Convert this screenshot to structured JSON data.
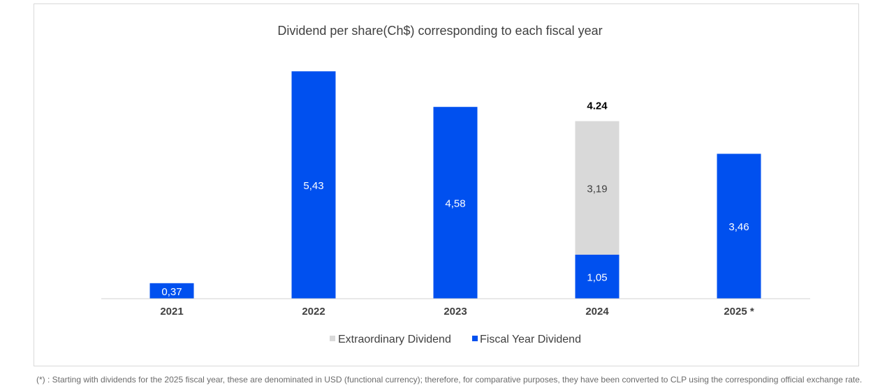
{
  "chart_data": {
    "type": "bar",
    "stacked": true,
    "title": "Dividend per share(Ch$)  corresponding to each fiscal year",
    "categories": [
      "2021",
      "2022",
      "2023",
      "2024",
      "2025 *"
    ],
    "series": [
      {
        "name": "Fiscal Year Dividend",
        "color": "#0050ef",
        "values": [
          0.37,
          5.43,
          4.58,
          1.05,
          3.46
        ],
        "labels": [
          "0,37",
          "5,43",
          "4,58",
          "1,05",
          "3,46"
        ]
      },
      {
        "name": "Extraordinary Dividend",
        "color": "#d9d9d9",
        "values": [
          0,
          0,
          0,
          3.19,
          0
        ],
        "labels": [
          "",
          "",
          "",
          "3,19",
          ""
        ]
      }
    ],
    "total_labels": [
      "",
      "",
      "",
      "4.24",
      ""
    ],
    "legend": {
      "position": "bottom",
      "order": [
        "Extraordinary Dividend",
        "Fiscal Year Dividend"
      ]
    },
    "ylim": [
      0,
      6
    ],
    "grid": false
  },
  "footnote": "(*) : Starting with dividends for the 2025 fiscal year, these are denominated in USD (functional currency); therefore, for comparative purposes, they have been converted to CLP using the corresponding official exchange rate."
}
